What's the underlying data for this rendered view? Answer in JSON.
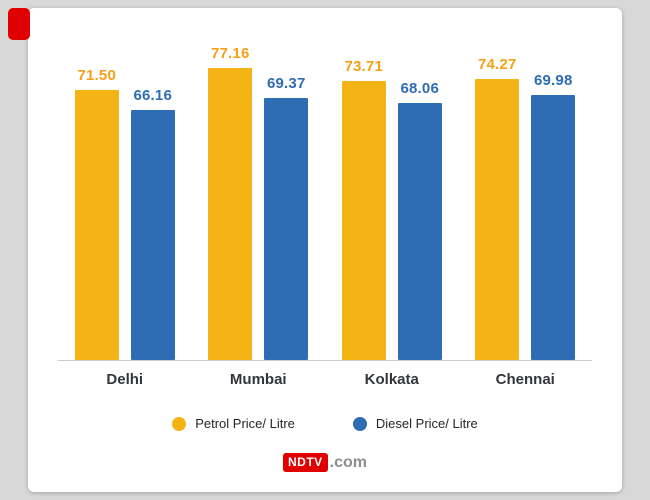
{
  "page": {
    "background": "#d8d8d8",
    "card_background": "#ffffff"
  },
  "chart_data": {
    "type": "bar",
    "title": "",
    "xlabel": "",
    "ylabel": "",
    "categories": [
      "Delhi",
      "Mumbai",
      "Kolkata",
      "Chennai"
    ],
    "series": [
      {
        "name": "Petrol Price/ Litre",
        "values": [
          71.5,
          77.16,
          73.71,
          74.27
        ],
        "labels": [
          "71.50",
          "77.16",
          "73.71",
          "74.27"
        ],
        "color": "#F5B415",
        "label_color": "#F5A017"
      },
      {
        "name": "Diesel Price/ Litre",
        "values": [
          66.16,
          69.37,
          68.06,
          69.98
        ],
        "labels": [
          "66.16",
          "69.37",
          "68.06",
          "69.98"
        ],
        "color": "#2E6DB4",
        "label_color": "#2E6DB4"
      }
    ],
    "ylim": [
      0,
      82
    ],
    "grid": false,
    "legend_position": "bottom",
    "baseline_color": "#cccccc",
    "category_label_color": "#33363c"
  },
  "footer": {
    "brand": "NDTV",
    "brand_suffix": ".com",
    "brand_bg": "#e00000",
    "brand_text_color": "#ffffff",
    "suffix_color": "#8e8e8e"
  },
  "decor": {
    "corner_tab_color": "#e00000"
  }
}
